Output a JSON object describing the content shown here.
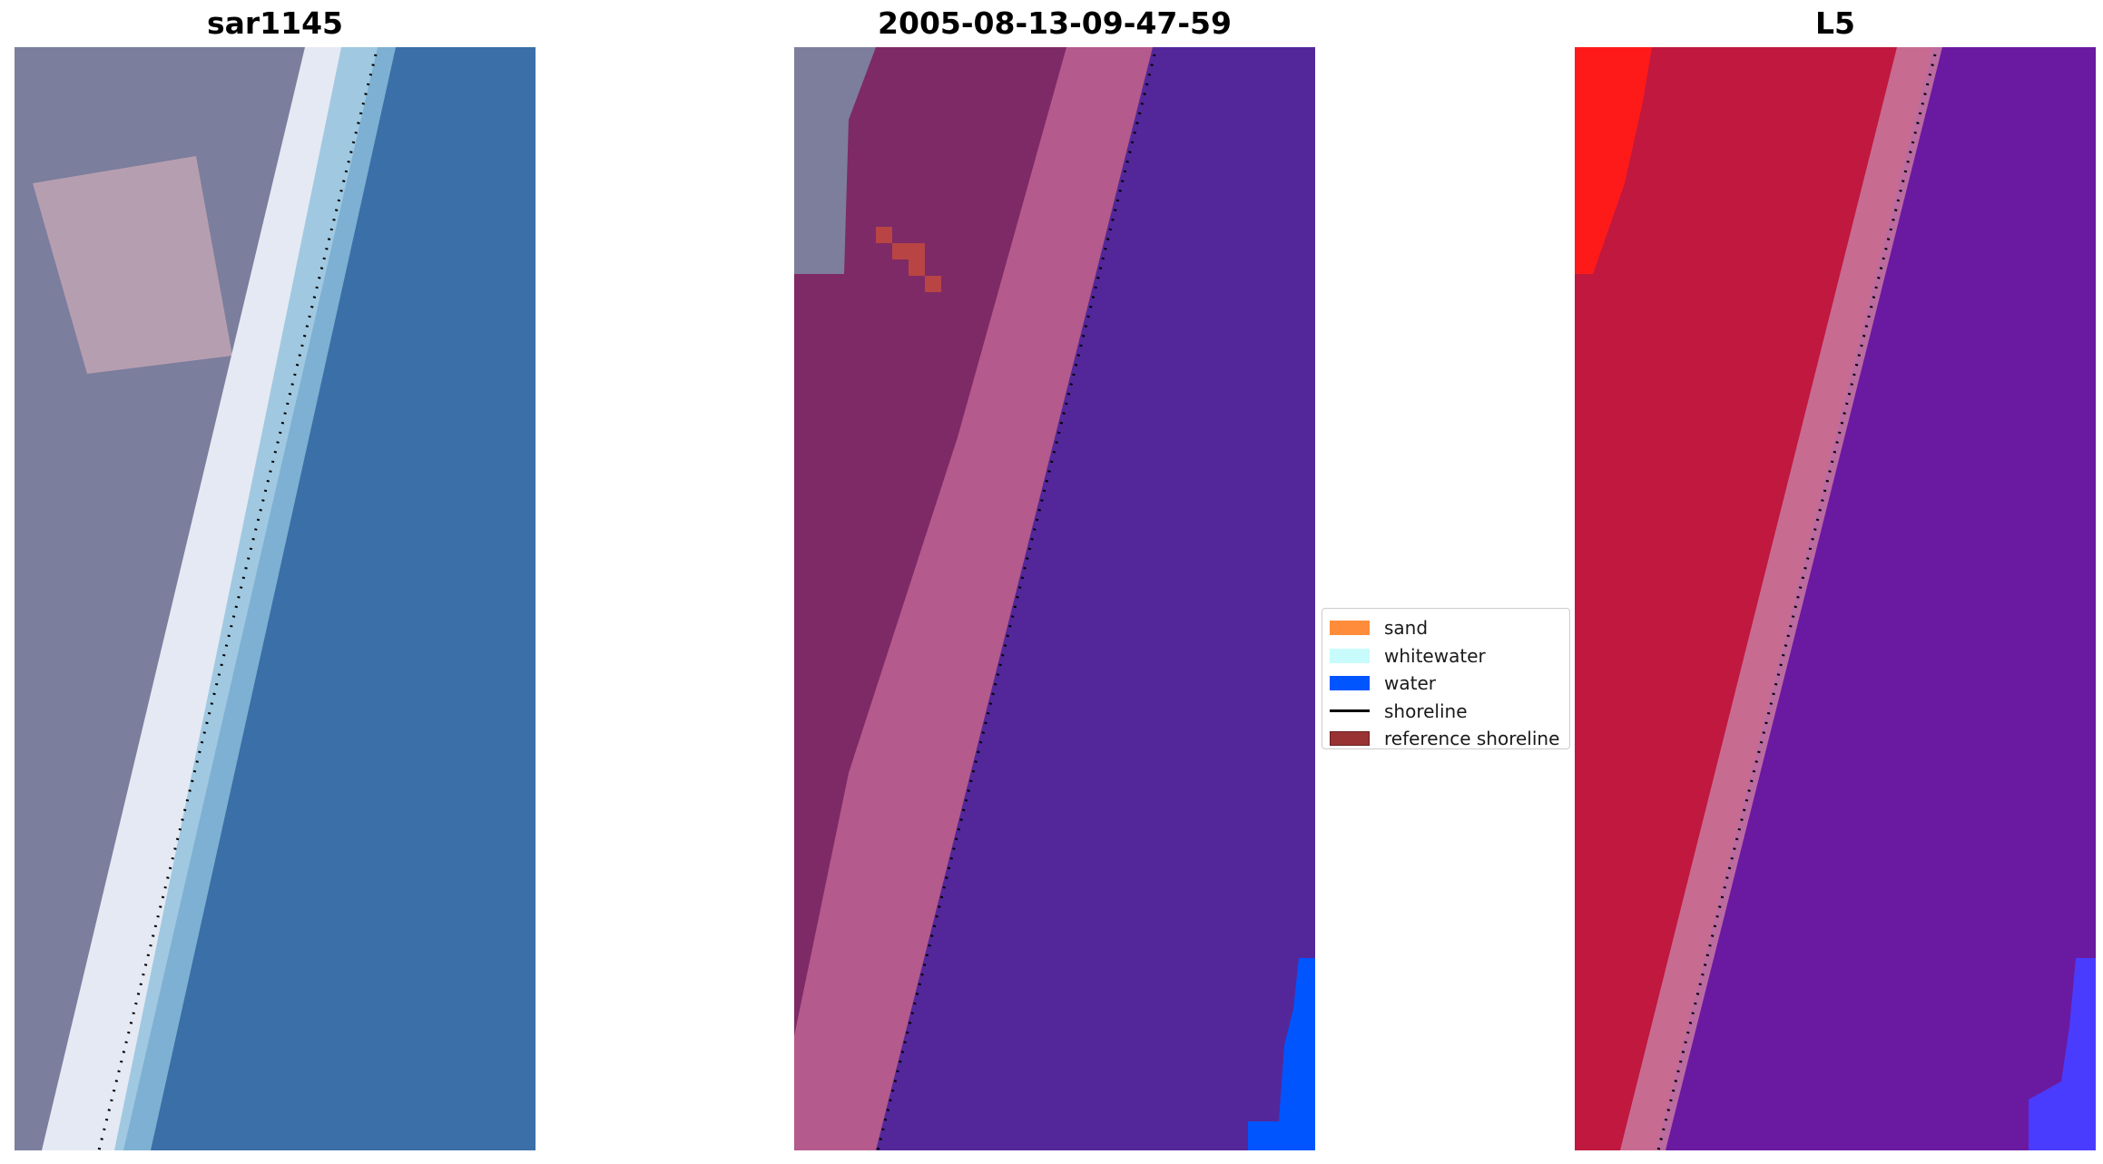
{
  "titles": {
    "left": "sar1145",
    "middle": "2005-08-13-09-47-59",
    "right": "L5"
  },
  "legend": {
    "items": [
      {
        "label": "sand",
        "kind": "patch",
        "color": "#ff8c3a"
      },
      {
        "label": "whitewater",
        "kind": "patch",
        "color": "#c8fbfb"
      },
      {
        "label": "water",
        "kind": "patch",
        "color": "#0055ff"
      },
      {
        "label": "shoreline",
        "kind": "line",
        "color": "#000000"
      },
      {
        "label": "reference shoreline",
        "kind": "patch",
        "color": "#993333",
        "edge": "#6b1f1f"
      }
    ]
  },
  "colors": {
    "rgb_land": "#7a7d9b",
    "rgb_water": "#3b73a8",
    "rgb_whitewater": "#e8ecf4",
    "class_land": "#7e2a67",
    "class_beach": "#b85a8e",
    "class_water": "#53279a",
    "class_water_edge": "#0055ff",
    "index_land": "#c21840",
    "index_water": "#6a1aa0",
    "index_high": "#ff1a1a",
    "index_edge": "#4a3cff"
  }
}
